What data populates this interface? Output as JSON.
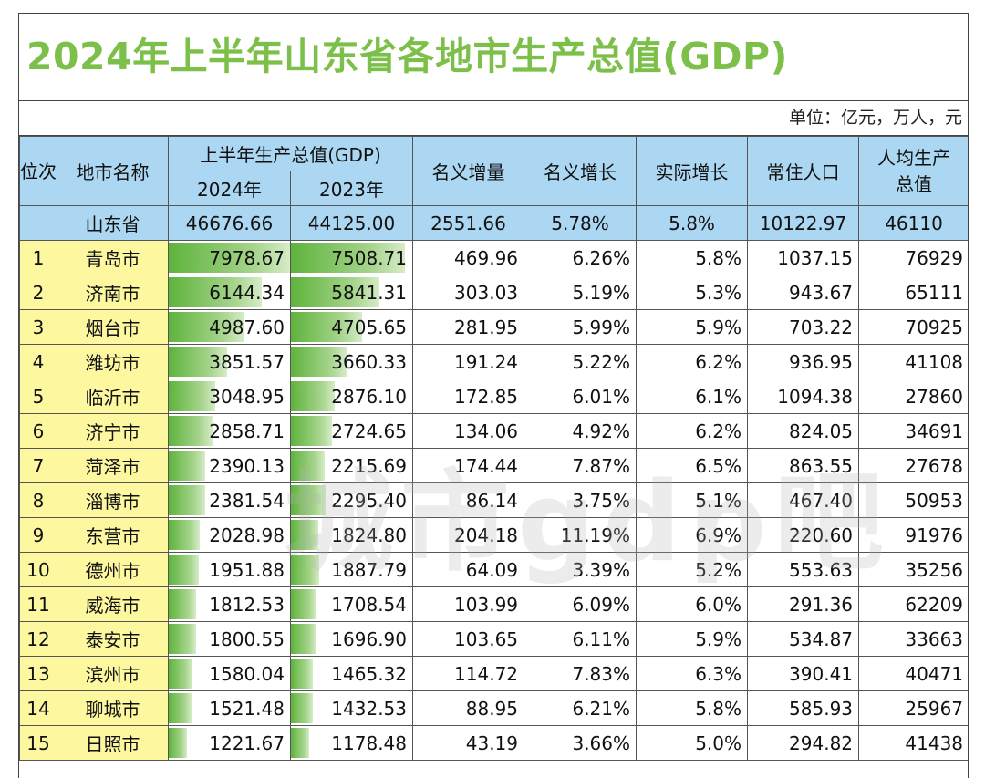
{
  "title": "2024年上半年山东省各地市生产总值(GDP)",
  "unit": "单位：亿元，万人，元",
  "headers": {
    "rank": "位次",
    "city": "地市名称",
    "gdp_group": "上半年生产总值(GDP)",
    "gdp2024": "2024年",
    "gdp2023": "2023年",
    "nominal_increase": "名义增量",
    "nominal_growth": "名义增长",
    "real_growth": "实际增长",
    "population": "常住人口",
    "per_capita": "人均生产总值"
  },
  "province": {
    "name": "山东省",
    "gdp2024": "46676.66",
    "gdp2023": "44125.00",
    "increase": "2551.66",
    "nominal": "5.78%",
    "real": "5.8%",
    "population": "10122.97",
    "per_capita": "46110"
  },
  "rows": [
    {
      "rank": "1",
      "city": "青岛市",
      "gdp2024": "7978.67",
      "gdp2023": "7508.71",
      "increase": "469.96",
      "nominal": "6.26%",
      "real": "5.8%",
      "population": "1037.15",
      "per_capita": "76929"
    },
    {
      "rank": "2",
      "city": "济南市",
      "gdp2024": "6144.34",
      "gdp2023": "5841.31",
      "increase": "303.03",
      "nominal": "5.19%",
      "real": "5.3%",
      "population": "943.67",
      "per_capita": "65111"
    },
    {
      "rank": "3",
      "city": "烟台市",
      "gdp2024": "4987.60",
      "gdp2023": "4705.65",
      "increase": "281.95",
      "nominal": "5.99%",
      "real": "5.9%",
      "population": "703.22",
      "per_capita": "70925"
    },
    {
      "rank": "4",
      "city": "潍坊市",
      "gdp2024": "3851.57",
      "gdp2023": "3660.33",
      "increase": "191.24",
      "nominal": "5.22%",
      "real": "6.2%",
      "population": "936.95",
      "per_capita": "41108"
    },
    {
      "rank": "5",
      "city": "临沂市",
      "gdp2024": "3048.95",
      "gdp2023": "2876.10",
      "increase": "172.85",
      "nominal": "6.01%",
      "real": "6.1%",
      "population": "1094.38",
      "per_capita": "27860"
    },
    {
      "rank": "6",
      "city": "济宁市",
      "gdp2024": "2858.71",
      "gdp2023": "2724.65",
      "increase": "134.06",
      "nominal": "4.92%",
      "real": "6.2%",
      "population": "824.05",
      "per_capita": "34691"
    },
    {
      "rank": "7",
      "city": "菏泽市",
      "gdp2024": "2390.13",
      "gdp2023": "2215.69",
      "increase": "174.44",
      "nominal": "7.87%",
      "real": "6.5%",
      "population": "863.55",
      "per_capita": "27678"
    },
    {
      "rank": "8",
      "city": "淄博市",
      "gdp2024": "2381.54",
      "gdp2023": "2295.40",
      "increase": "86.14",
      "nominal": "3.75%",
      "real": "5.1%",
      "population": "467.40",
      "per_capita": "50953"
    },
    {
      "rank": "9",
      "city": "东营市",
      "gdp2024": "2028.98",
      "gdp2023": "1824.80",
      "increase": "204.18",
      "nominal": "11.19%",
      "real": "6.9%",
      "population": "220.60",
      "per_capita": "91976"
    },
    {
      "rank": "10",
      "city": "德州市",
      "gdp2024": "1951.88",
      "gdp2023": "1887.79",
      "increase": "64.09",
      "nominal": "3.39%",
      "real": "5.2%",
      "population": "553.63",
      "per_capita": "35256"
    },
    {
      "rank": "11",
      "city": "威海市",
      "gdp2024": "1812.53",
      "gdp2023": "1708.54",
      "increase": "103.99",
      "nominal": "6.09%",
      "real": "6.0%",
      "population": "291.36",
      "per_capita": "62209"
    },
    {
      "rank": "12",
      "city": "泰安市",
      "gdp2024": "1800.55",
      "gdp2023": "1696.90",
      "increase": "103.65",
      "nominal": "6.11%",
      "real": "5.9%",
      "population": "534.87",
      "per_capita": "33663"
    },
    {
      "rank": "13",
      "city": "滨州市",
      "gdp2024": "1580.04",
      "gdp2023": "1465.32",
      "increase": "114.72",
      "nominal": "7.83%",
      "real": "6.3%",
      "population": "390.41",
      "per_capita": "40471"
    },
    {
      "rank": "14",
      "city": "聊城市",
      "gdp2024": "1521.48",
      "gdp2023": "1432.53",
      "increase": "88.95",
      "nominal": "6.21%",
      "real": "5.8%",
      "population": "585.93",
      "per_capita": "25967"
    },
    {
      "rank": "15",
      "city": "日照市",
      "gdp2024": "1221.67",
      "gdp2023": "1178.48",
      "increase": "43.19",
      "nominal": "3.66%",
      "real": "5.0%",
      "population": "294.82",
      "per_capita": "41438"
    }
  ],
  "watermark": "城市gdp吧"
}
